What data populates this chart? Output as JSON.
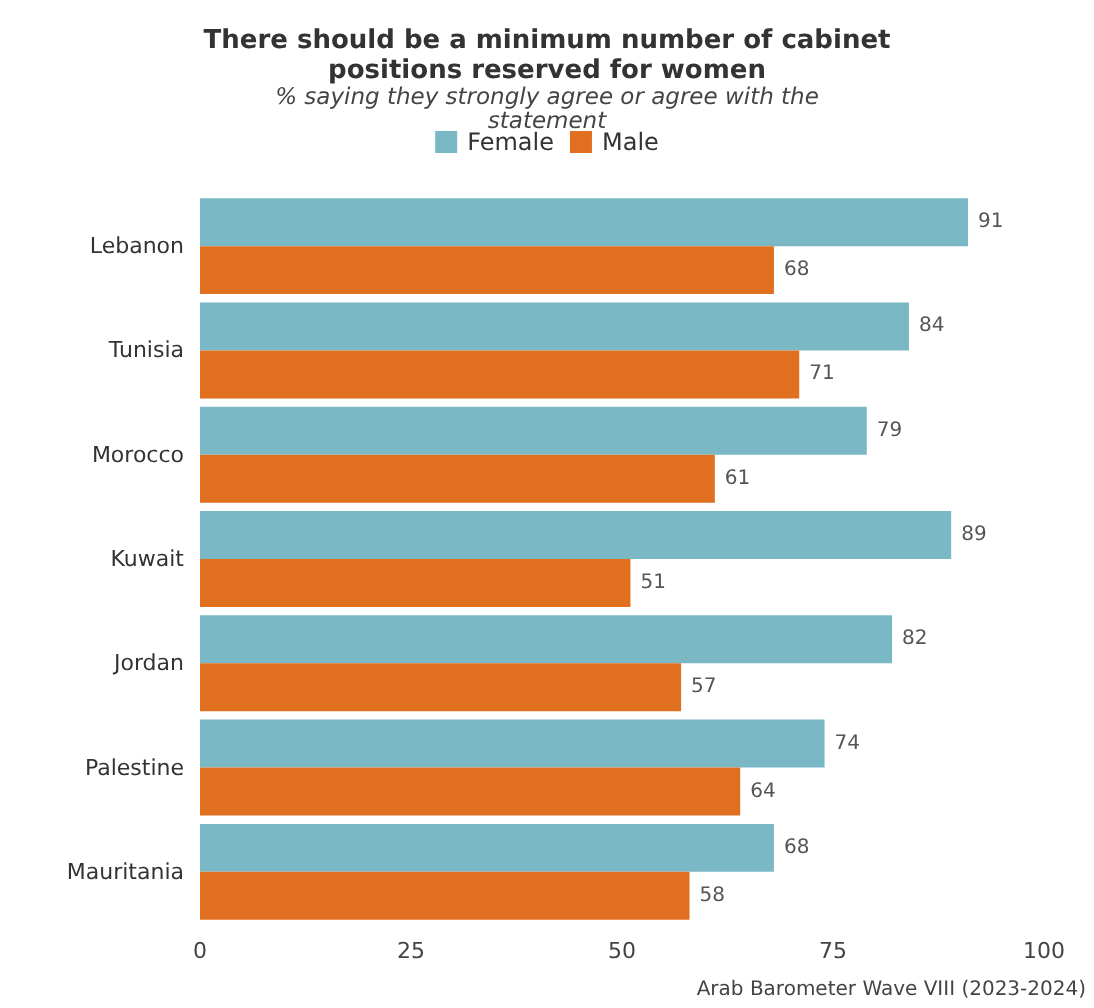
{
  "chart_data": {
    "type": "bar",
    "orientation": "horizontal",
    "title": "There should be a minimum number of cabinet\npositions reserved for women",
    "subtitle": "% saying they strongly agree or agree with the\nstatement",
    "categories": [
      "Lebanon",
      "Tunisia",
      "Morocco",
      "Kuwait",
      "Jordan",
      "Palestine",
      "Mauritania"
    ],
    "series": [
      {
        "name": "Female",
        "color": "#7ab8c6",
        "values": [
          91,
          84,
          79,
          89,
          82,
          74,
          68
        ]
      },
      {
        "name": "Male",
        "color": "#e07020",
        "values": [
          68,
          71,
          61,
          51,
          57,
          64,
          58
        ]
      }
    ],
    "xlim": [
      0,
      100
    ],
    "xticks": [
      0,
      25,
      50,
      75,
      100
    ],
    "grid": false,
    "legend": "top",
    "data_labels": true,
    "annotations": [
      "Arab Barometer Wave VIII (2023-2024)"
    ]
  }
}
